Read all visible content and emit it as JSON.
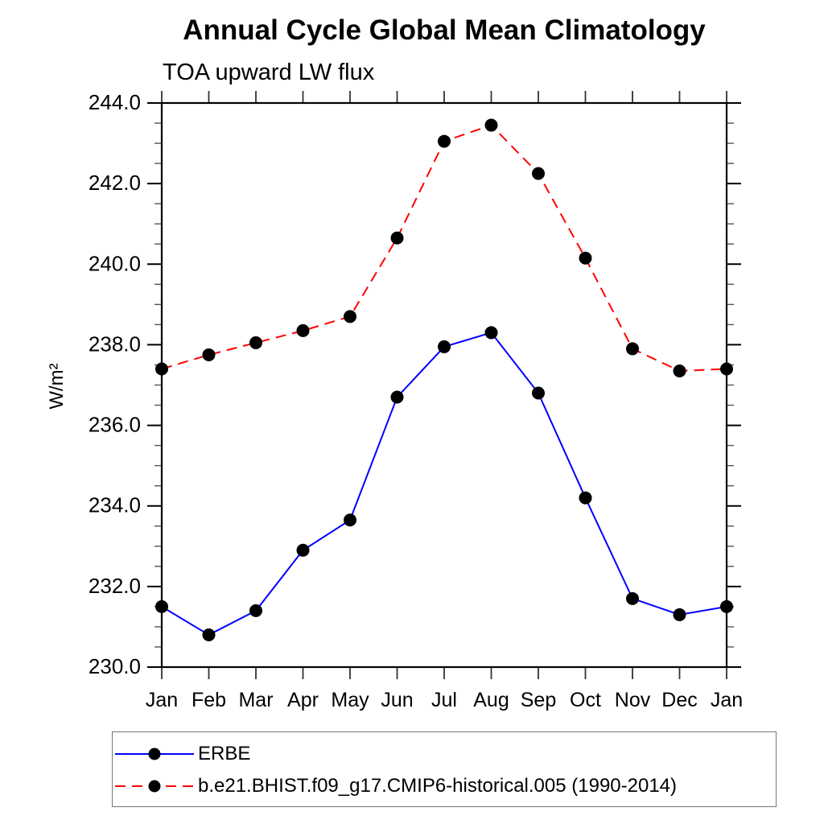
{
  "chart_data": {
    "type": "line",
    "title": "Annual Cycle Global Mean Climatology",
    "subtitle": "TOA upward LW flux",
    "ylabel": "W/m²",
    "xlabel": "",
    "categories": [
      "Jan",
      "Feb",
      "Mar",
      "Apr",
      "May",
      "Jun",
      "Jul",
      "Aug",
      "Sep",
      "Oct",
      "Nov",
      "Dec",
      "Jan"
    ],
    "series": [
      {
        "name": "ERBE",
        "color": "#0000ff",
        "line_style": "solid",
        "marker": "black-dot",
        "values": [
          231.5,
          230.8,
          231.4,
          232.9,
          233.65,
          236.7,
          237.95,
          238.3,
          236.8,
          234.2,
          231.7,
          231.3,
          231.5
        ]
      },
      {
        "name": "b.e21.BHIST.f09_g17.CMIP6-historical.005 (1990-2014)",
        "color": "#ff0000",
        "line_style": "dashed",
        "marker": "black-dot",
        "values": [
          237.4,
          237.75,
          238.05,
          238.35,
          238.7,
          240.65,
          243.05,
          243.45,
          242.25,
          240.15,
          237.9,
          237.35,
          237.4
        ]
      }
    ],
    "ylim": [
      230.0,
      244.0
    ],
    "ytick_major": 2.0,
    "ytick_minor": 0.5,
    "ytick_format_decimals": 1,
    "grid": false,
    "legend_position": "bottom-left",
    "marker_color": "#000000",
    "marker_radius": 8
  }
}
